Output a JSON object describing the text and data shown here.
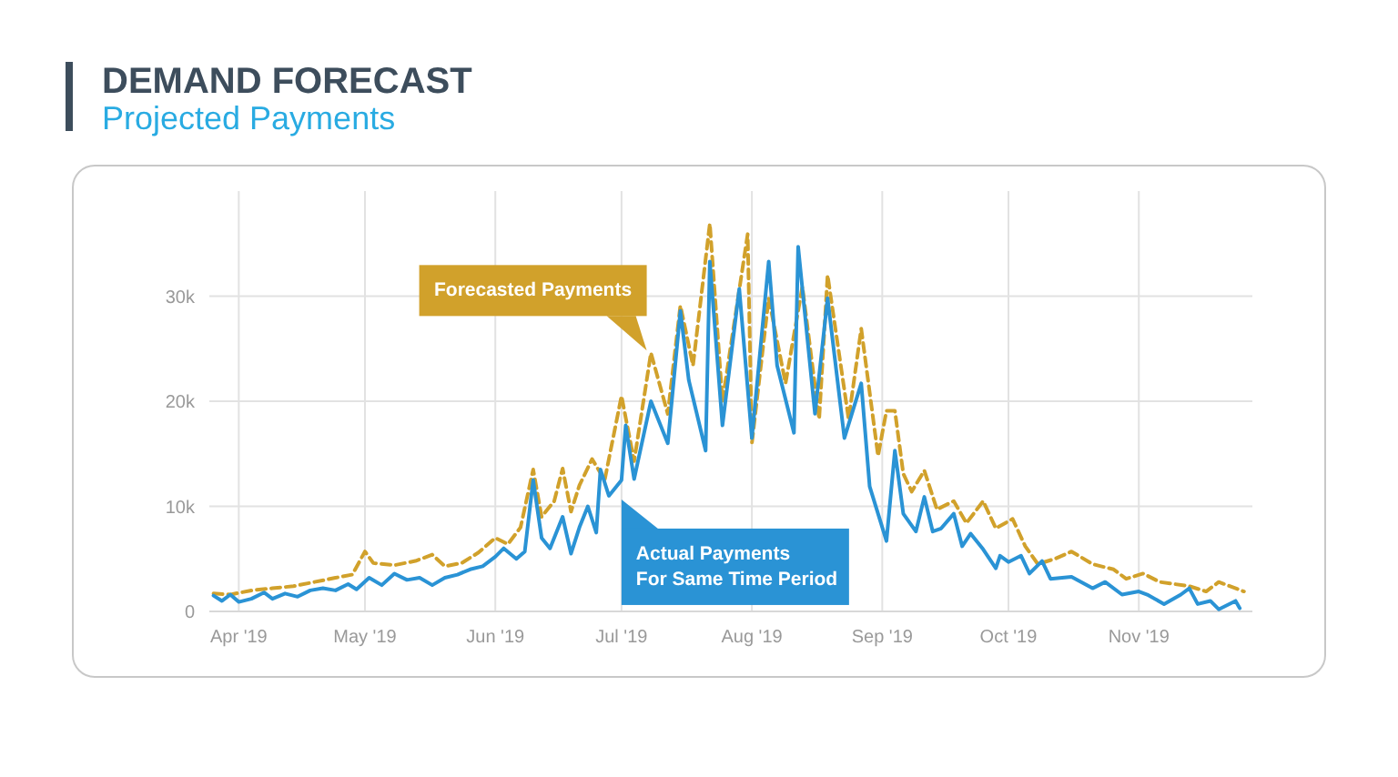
{
  "chart_data": {
    "type": "line",
    "title": "DEMAND FORECAST",
    "subtitle": "Projected Payments",
    "xlim": [
      "2019-03-25",
      "2019-11-28"
    ],
    "ylim": [
      0,
      40000
    ],
    "xticks": [
      {
        "value": "2019-04-01",
        "label": "Apr '19"
      },
      {
        "value": "2019-05-01",
        "label": "May '19"
      },
      {
        "value": "2019-06-01",
        "label": "Jun '19"
      },
      {
        "value": "2019-07-01",
        "label": "Jul '19"
      },
      {
        "value": "2019-08-01",
        "label": "Aug '19"
      },
      {
        "value": "2019-09-01",
        "label": "Sep '19"
      },
      {
        "value": "2019-10-01",
        "label": "Oct '19"
      },
      {
        "value": "2019-11-01",
        "label": "Nov '19"
      }
    ],
    "yticks": [
      0,
      {
        "value": 10000,
        "label": "10k"
      },
      {
        "value": 20000,
        "label": "20k"
      },
      {
        "value": 30000,
        "label": "30k"
      }
    ],
    "grid": true,
    "series": [
      {
        "color": "#d1a12b",
        "line_style": "dashed",
        "x": [
          "2019-03-26",
          "2019-03-30",
          "2019-04-04",
          "2019-04-09",
          "2019-04-14",
          "2019-04-19",
          "2019-04-24",
          "2019-04-28",
          "2019-05-01",
          "2019-05-03",
          "2019-05-08",
          "2019-05-13",
          "2019-05-17",
          "2019-05-20",
          "2019-05-24",
          "2019-05-28",
          "2019-06-01",
          "2019-06-04",
          "2019-06-07",
          "2019-06-10",
          "2019-06-12",
          "2019-06-15",
          "2019-06-17",
          "2019-06-19",
          "2019-06-21",
          "2019-06-24",
          "2019-06-27",
          "2019-07-01",
          "2019-07-04",
          "2019-07-08",
          "2019-07-12",
          "2019-07-15",
          "2019-07-18",
          "2019-07-22",
          "2019-07-25",
          "2019-07-31",
          "2019-08-01",
          "2019-08-05",
          "2019-08-09",
          "2019-08-13",
          "2019-08-17",
          "2019-08-19",
          "2019-08-24",
          "2019-08-27",
          "2019-08-31",
          "2019-09-02",
          "2019-09-04",
          "2019-09-06",
          "2019-09-08",
          "2019-09-11",
          "2019-09-14",
          "2019-09-18",
          "2019-09-21",
          "2019-09-25",
          "2019-09-28",
          "2019-10-02",
          "2019-10-05",
          "2019-10-08",
          "2019-10-12",
          "2019-10-16",
          "2019-10-21",
          "2019-10-26",
          "2019-10-29",
          "2019-11-02",
          "2019-11-06",
          "2019-11-13",
          "2019-11-17",
          "2019-11-20",
          "2019-11-26"
        ],
        "values": [
          1700,
          1600,
          2000,
          2200,
          2400,
          2800,
          3200,
          3500,
          5700,
          4600,
          4400,
          4800,
          5400,
          4300,
          4600,
          5600,
          7000,
          6400,
          8000,
          13500,
          9000,
          10500,
          13600,
          9500,
          12000,
          14500,
          12500,
          20500,
          14300,
          24600,
          18800,
          29100,
          23400,
          36900,
          20000,
          35900,
          16000,
          29800,
          21700,
          30900,
          18300,
          32000,
          18300,
          26900,
          14800,
          19100,
          19100,
          13100,
          11400,
          13400,
          9700,
          10500,
          8400,
          10500,
          7900,
          8800,
          6200,
          4500,
          5000,
          5700,
          4500,
          4000,
          3100,
          3600,
          2800,
          2400,
          1900,
          2800,
          1900
        ]
      },
      {
        "color": "#2a93d5",
        "line_style": "solid",
        "x": [
          "2019-03-26",
          "2019-03-28",
          "2019-03-30",
          "2019-04-01",
          "2019-04-04",
          "2019-04-07",
          "2019-04-09",
          "2019-04-12",
          "2019-04-15",
          "2019-04-18",
          "2019-04-21",
          "2019-04-24",
          "2019-04-27",
          "2019-04-29",
          "2019-05-02",
          "2019-05-05",
          "2019-05-08",
          "2019-05-11",
          "2019-05-14",
          "2019-05-17",
          "2019-05-20",
          "2019-05-23",
          "2019-05-26",
          "2019-05-29",
          "2019-06-01",
          "2019-06-03",
          "2019-06-06",
          "2019-06-08",
          "2019-06-10",
          "2019-06-12",
          "2019-06-14",
          "2019-06-17",
          "2019-06-19",
          "2019-06-21",
          "2019-06-23",
          "2019-06-25",
          "2019-06-26",
          "2019-06-28",
          "2019-07-01",
          "2019-07-02",
          "2019-07-04",
          "2019-07-08",
          "2019-07-12",
          "2019-07-15",
          "2019-07-17",
          "2019-07-21",
          "2019-07-22",
          "2019-07-25",
          "2019-07-29",
          "2019-08-01",
          "2019-08-05",
          "2019-08-07",
          "2019-08-11",
          "2019-08-12",
          "2019-08-16",
          "2019-08-19",
          "2019-08-23",
          "2019-08-27",
          "2019-08-29",
          "2019-09-02",
          "2019-09-04",
          "2019-09-06",
          "2019-09-09",
          "2019-09-11",
          "2019-09-13",
          "2019-09-15",
          "2019-09-18",
          "2019-09-20",
          "2019-09-22",
          "2019-09-25",
          "2019-09-28",
          "2019-09-29",
          "2019-10-01",
          "2019-10-04",
          "2019-10-06",
          "2019-10-09",
          "2019-10-11",
          "2019-10-16",
          "2019-10-21",
          "2019-10-24",
          "2019-10-28",
          "2019-11-01",
          "2019-11-03",
          "2019-11-07",
          "2019-11-11",
          "2019-11-13",
          "2019-11-15",
          "2019-11-18",
          "2019-11-20",
          "2019-11-24",
          "2019-11-25"
        ],
        "values": [
          1500,
          1000,
          1600,
          900,
          1200,
          1800,
          1200,
          1700,
          1400,
          2000,
          2200,
          2000,
          2600,
          2100,
          3200,
          2500,
          3600,
          3000,
          3200,
          2500,
          3200,
          3500,
          4000,
          4300,
          5200,
          6000,
          5000,
          5700,
          12500,
          7000,
          6000,
          9000,
          5500,
          8000,
          10000,
          7500,
          13500,
          11000,
          12500,
          17700,
          12600,
          20000,
          16000,
          28600,
          22000,
          15300,
          33300,
          17700,
          30700,
          16500,
          33300,
          23400,
          17000,
          34700,
          18800,
          29800,
          16500,
          21700,
          11900,
          6700,
          15300,
          9300,
          7600,
          10900,
          7600,
          7900,
          9300,
          6200,
          7400,
          5900,
          4100,
          5300,
          4700,
          5300,
          3600,
          4800,
          3100,
          3300,
          2200,
          2800,
          1600,
          1900,
          1600,
          700,
          1600,
          2200,
          700,
          1000,
          200,
          1000,
          300
        ]
      }
    ],
    "annotations": [
      {
        "text": "Forecasted Payments",
        "x": "2019-07-07",
        "y": 24300
      },
      {
        "text": "Actual Payments\nFor Same Time Period",
        "x": "2019-07-01",
        "y": 11000
      }
    ]
  }
}
